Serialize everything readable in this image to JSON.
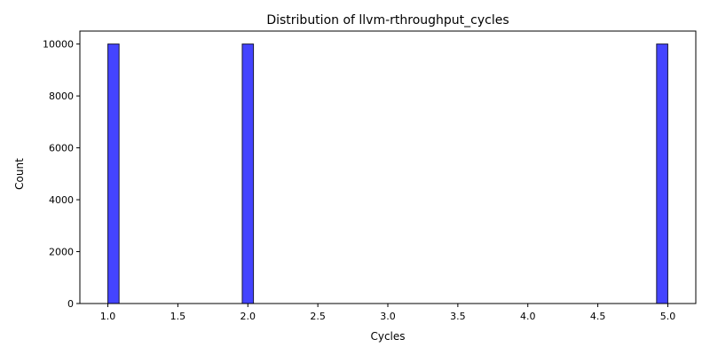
{
  "chart_data": {
    "type": "bar",
    "title": "Distribution of llvm-rthroughput_cycles",
    "xlabel": "Cycles",
    "ylabel": "Count",
    "xlim": [
      0.8,
      5.2
    ],
    "ylim": [
      0,
      10500
    ],
    "grid": false,
    "bin_width": 0.08,
    "bars": [
      {
        "x_start": 1.0,
        "x_end": 1.08,
        "value": 10000
      },
      {
        "x_start": 1.96,
        "x_end": 2.04,
        "value": 10000
      },
      {
        "x_start": 4.92,
        "x_end": 5.0,
        "value": 10000
      }
    ],
    "xticks": [
      1.0,
      1.5,
      2.0,
      2.5,
      3.0,
      3.5,
      4.0,
      4.5,
      5.0
    ],
    "xtick_labels": [
      "1.0",
      "1.5",
      "2.0",
      "2.5",
      "3.0",
      "3.5",
      "4.0",
      "4.5",
      "5.0"
    ],
    "yticks": [
      0,
      2000,
      4000,
      6000,
      8000,
      10000
    ],
    "ytick_labels": [
      "0",
      "2000",
      "4000",
      "6000",
      "8000",
      "10000"
    ],
    "bar_color": "#4444ff",
    "bar_edge_color": "#1a1a3a"
  }
}
